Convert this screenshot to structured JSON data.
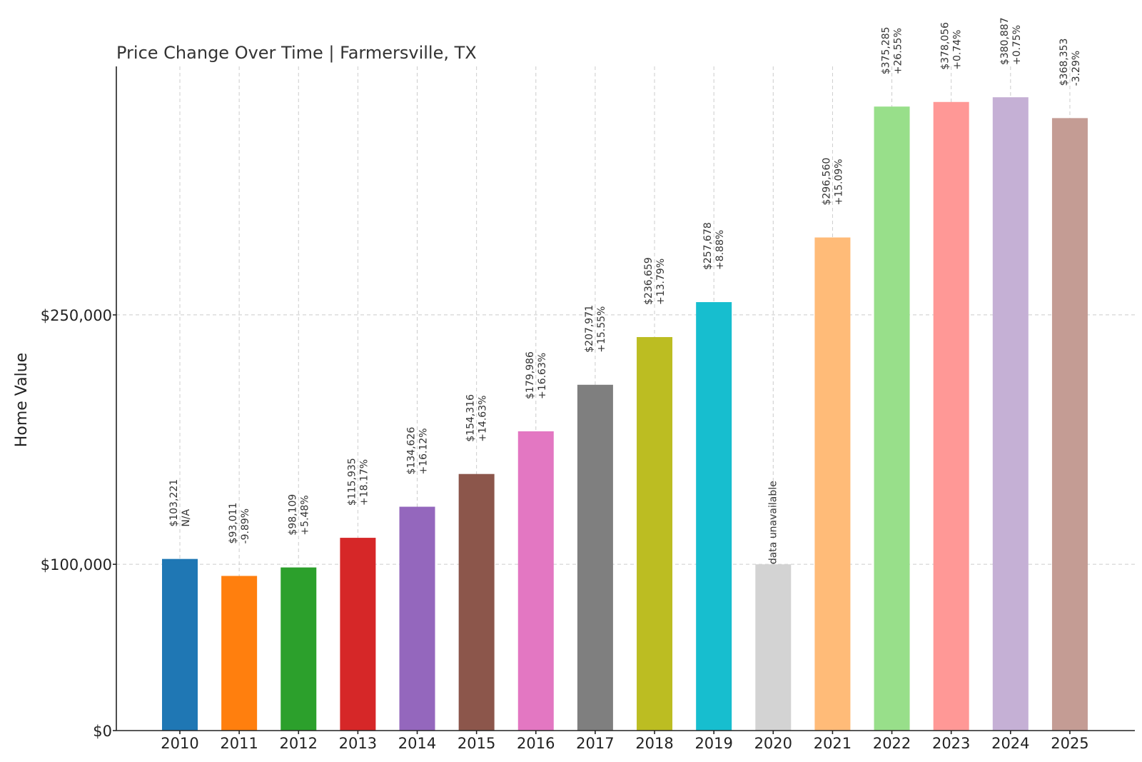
{
  "chart_data": {
    "type": "bar",
    "title": "Price Change Over Time | Farmersville, TX",
    "xlabel": "",
    "ylabel": "Home Value",
    "ylim": [
      0,
      395000
    ],
    "yticks": [
      {
        "value": 0,
        "label": "$0"
      },
      {
        "value": 100000,
        "label": "$100,000"
      },
      {
        "value": 250000,
        "label": "$250,000"
      }
    ],
    "grid": true,
    "categories": [
      "2010",
      "2011",
      "2012",
      "2013",
      "2014",
      "2015",
      "2016",
      "2017",
      "2018",
      "2019",
      "2020",
      "2021",
      "2022",
      "2023",
      "2024",
      "2025"
    ],
    "values": [
      103221,
      93011,
      98109,
      115935,
      134626,
      154316,
      179986,
      207971,
      236659,
      257678,
      100000,
      296560,
      375285,
      378056,
      380887,
      368353
    ],
    "value_labels": [
      "$103,221",
      "$93,011",
      "$98,109",
      "$115,935",
      "$134,626",
      "$154,316",
      "$179,986",
      "$207,971",
      "$236,659",
      "$257,678",
      "",
      "$296,560",
      "$375,285",
      "$378,056",
      "$380,887",
      "$368,353"
    ],
    "change_labels": [
      "N/A",
      "-9.89%",
      "+5.48%",
      "+18.17%",
      "+16.12%",
      "+14.63%",
      "+16.63%",
      "+15.55%",
      "+13.79%",
      "+8.88%",
      "",
      "+15.09%",
      "+26.55%",
      "+0.74%",
      "+0.75%",
      "-3.29%"
    ],
    "missing_label": "data unavailable",
    "missing_index": 10,
    "colors": [
      "#1f77b4",
      "#ff7f0e",
      "#2ca02c",
      "#d62728",
      "#9467bd",
      "#8c564b",
      "#e377c2",
      "#7f7f7f",
      "#bcbd22",
      "#17becf",
      "#d3d3d3",
      "#ffbb78",
      "#98df8a",
      "#ff9896",
      "#c5b0d5",
      "#c49c94"
    ]
  }
}
